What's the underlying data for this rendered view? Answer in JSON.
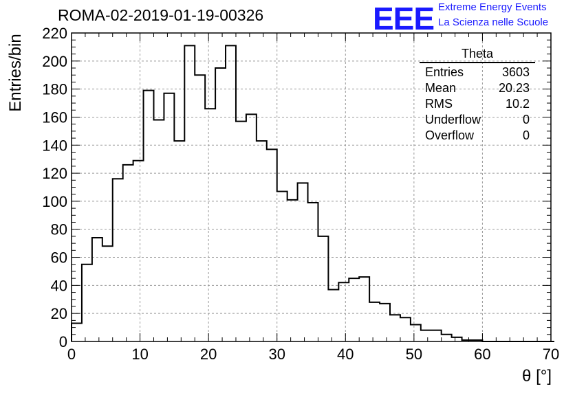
{
  "header": {
    "title": "ROMA-02-2019-01-19-00326",
    "logo_text": "EEE",
    "logo_line1": "Extreme Energy Events",
    "logo_line2": "La Scienza nelle Scuole"
  },
  "stats_box": {
    "name": "Theta",
    "rows": [
      {
        "label": "Entries",
        "value": "3603"
      },
      {
        "label": "Mean",
        "value": "20.23"
      },
      {
        "label": "RMS",
        "value": "10.2"
      },
      {
        "label": "Underflow",
        "value": "0"
      },
      {
        "label": "Overflow",
        "value": "0"
      }
    ]
  },
  "chart_data": {
    "type": "bar",
    "title": "ROMA-02-2019-01-19-00326",
    "xlabel": "θ [°]",
    "ylabel": "Entries/bin",
    "xlim": [
      0,
      70
    ],
    "ylim": [
      0,
      220
    ],
    "x_ticks": [
      0,
      10,
      20,
      30,
      40,
      50,
      60,
      70
    ],
    "y_ticks": [
      0,
      20,
      40,
      60,
      80,
      100,
      120,
      140,
      160,
      180,
      200,
      220
    ],
    "grid": true,
    "bin_width": 1.5,
    "bin_start": 0,
    "values": [
      13,
      55,
      74,
      68,
      116,
      126,
      129,
      179,
      158,
      177,
      143,
      211,
      190,
      166,
      195,
      211,
      157,
      162,
      143,
      137,
      107,
      101,
      113,
      99,
      75,
      37,
      42,
      45,
      46,
      28,
      27,
      19,
      17,
      12,
      8,
      8,
      5,
      3,
      1,
      1,
      0,
      0,
      0,
      0,
      0,
      0,
      0
    ],
    "line_color": "#000000"
  }
}
